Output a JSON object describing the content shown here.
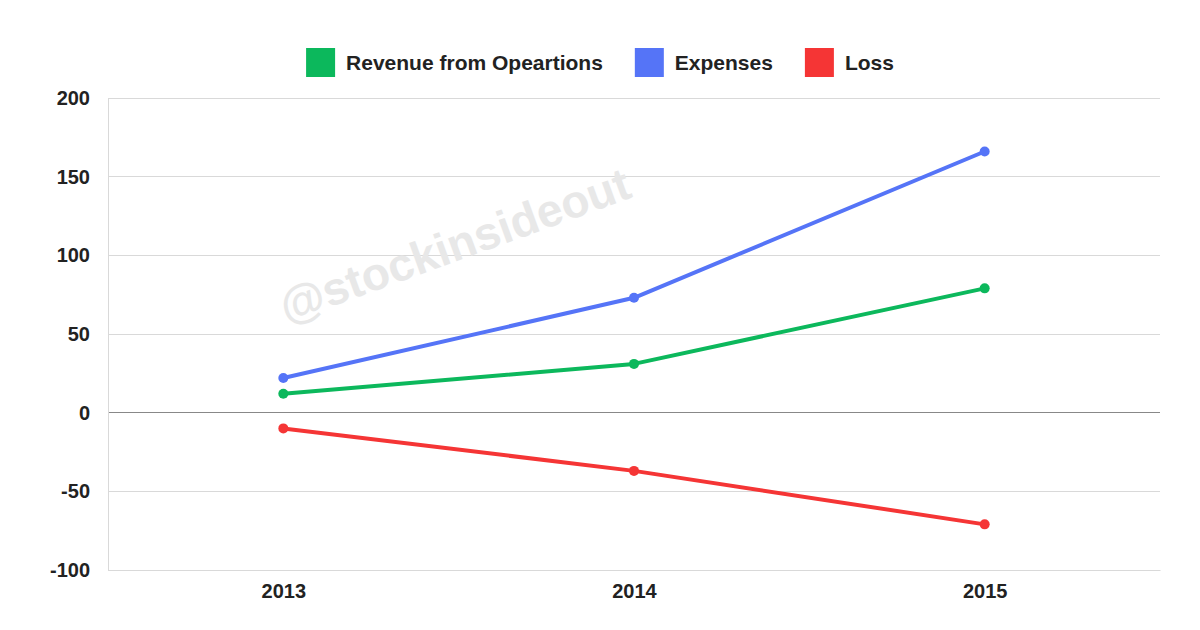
{
  "chart_data": {
    "type": "line",
    "categories": [
      "2013",
      "2014",
      "2015"
    ],
    "series": [
      {
        "name": "Revenue from Opeartions",
        "color": "#0cb85c",
        "values": [
          12,
          31,
          79
        ]
      },
      {
        "name": "Expenses",
        "color": "#5574f7",
        "values": [
          22,
          73,
          166
        ]
      },
      {
        "name": "Loss",
        "color": "#f53535",
        "values": [
          -10,
          -37,
          -71
        ]
      }
    ],
    "ylim": [
      -100,
      200
    ],
    "yticks": [
      -100,
      -50,
      0,
      50,
      100,
      150,
      200
    ],
    "grid": true,
    "legend": "top",
    "marker": "circle",
    "annotations": [
      "@stockinsideout"
    ]
  }
}
